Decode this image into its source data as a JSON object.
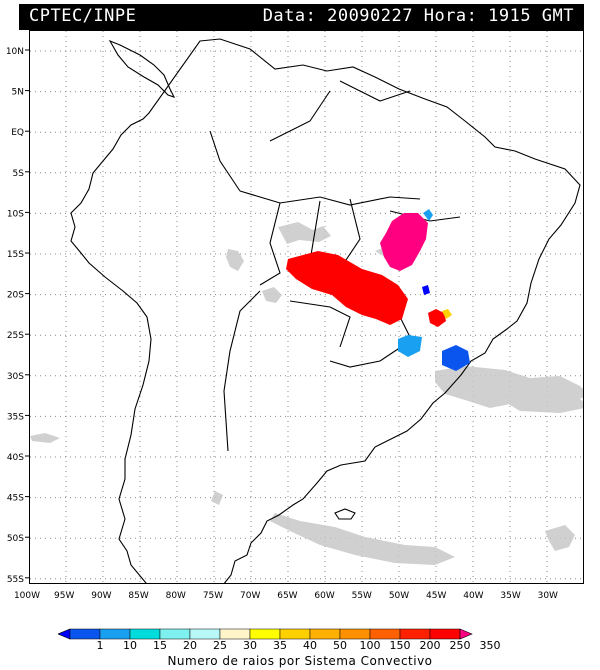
{
  "header": {
    "left_title": "CPTEC/INPE",
    "right_title": "Data: 20090227 Hora: 1915 GMT"
  },
  "axes": {
    "lat_labels": [
      "10N",
      "5N",
      "EQ",
      "5S",
      "10S",
      "15S",
      "20S",
      "25S",
      "30S",
      "35S",
      "40S",
      "45S",
      "50S",
      "55S"
    ],
    "lon_labels": [
      "100W",
      "95W",
      "90W",
      "85W",
      "80W",
      "75W",
      "70W",
      "65W",
      "60W",
      "55W",
      "50W",
      "45W",
      "40W",
      "35W",
      "30W"
    ]
  },
  "colorbar": {
    "title": "Numero de raios por Sistema Convectivo",
    "labels": [
      "1",
      "10",
      "15",
      "20",
      "25",
      "30",
      "35",
      "40",
      "50",
      "100",
      "150",
      "200",
      "250",
      "350"
    ],
    "colors": [
      "#0000ff",
      "#0a55ee",
      "#1aa0f0",
      "#00dcdc",
      "#7ff0f0",
      "#b8f8f8",
      "#fff5c8",
      "#ffff00",
      "#ffd000",
      "#ffb000",
      "#ff9000",
      "#ff6000",
      "#ff2000",
      "#ff0000",
      "#ff0080"
    ]
  },
  "legend_colors": {
    "cloud": "#c8c8c8",
    "coast": "#000000",
    "grid": "#888888"
  }
}
